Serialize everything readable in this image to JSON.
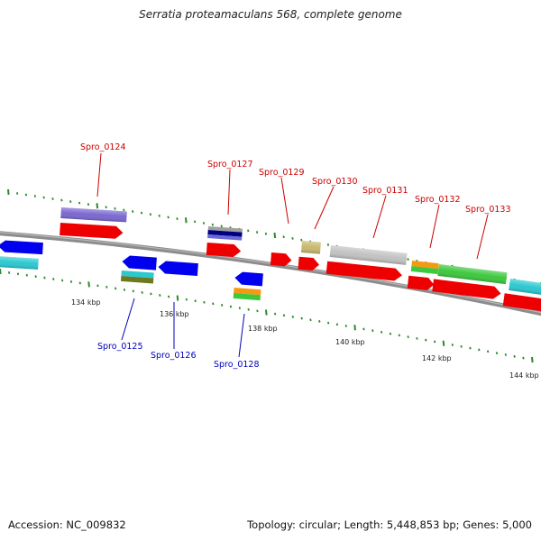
{
  "title": "Serratia proteamaculans 568, complete genome",
  "footer": {
    "accession": "Accession: NC_009832",
    "summary": "Topology: circular; Length: 5,448,853 bp; Genes: 5,000"
  },
  "colors": {
    "backbone": "#8c8c8c",
    "tick_marks": "#2a8a2a",
    "label_forward": "#cc0000",
    "label_reverse": "#0000bb"
  },
  "scale_ticks": [
    "134 kbp",
    "136 kbp",
    "138 kbp",
    "140 kbp",
    "142 kbp",
    "144 kbp"
  ],
  "gene_labels": {
    "forward": [
      "Spro_0124",
      "Spro_0127",
      "Spro_0129",
      "Spro_0130",
      "Spro_0131",
      "Spro_0132",
      "Spro_0133"
    ],
    "reverse": [
      "Spro_0125",
      "Spro_0126",
      "Spro_0128"
    ]
  }
}
